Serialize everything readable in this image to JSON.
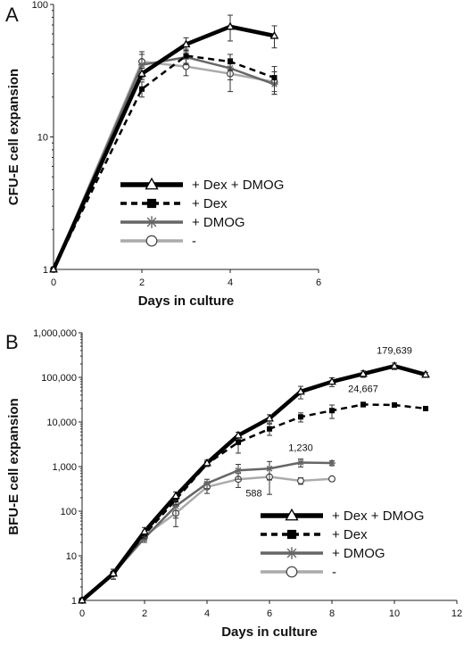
{
  "chart_data": [
    {
      "panel": "A",
      "type": "line",
      "xlabel": "Days in culture",
      "ylabel": "CFU-E cell expansion",
      "xlim": [
        0,
        6
      ],
      "ylim": [
        1,
        100
      ],
      "yscale": "log",
      "x_ticks": [
        "0",
        "2",
        "4",
        "6"
      ],
      "y_ticks": [
        "1",
        "10",
        "100"
      ],
      "legend_position": "center-right",
      "series": [
        {
          "name": "+ Dex + DMOG",
          "color": "#000000",
          "marker": "triangle",
          "line": "solid-thick",
          "x": [
            0,
            2,
            3,
            4,
            5
          ],
          "y": [
            1,
            30,
            50,
            68,
            58
          ],
          "err": [
            0,
            3,
            6,
            15,
            11
          ]
        },
        {
          "name": "+ Dex",
          "color": "#000000",
          "marker": "square",
          "line": "dashed",
          "x": [
            0,
            2,
            3,
            4,
            5
          ],
          "y": [
            1,
            23,
            41,
            37,
            28
          ],
          "err": [
            0,
            3,
            5,
            5,
            6
          ]
        },
        {
          "name": "+ DMOG",
          "color": "#666666",
          "marker": "asterisk",
          "line": "solid",
          "x": [
            0,
            2,
            3,
            4,
            5
          ],
          "y": [
            1,
            35,
            40,
            33,
            25
          ],
          "err": [
            0,
            7,
            5,
            6,
            4
          ]
        },
        {
          "name": "-",
          "color": "#aaaaaa",
          "marker": "circle",
          "line": "solid-light",
          "x": [
            0,
            2,
            3,
            4,
            5
          ],
          "y": [
            1,
            37,
            34,
            30,
            26
          ],
          "err": [
            0,
            7,
            5,
            8,
            5
          ]
        }
      ]
    },
    {
      "panel": "B",
      "type": "line",
      "xlabel": "Days in culture",
      "ylabel": "BFU-E cell expansion",
      "xlim": [
        0,
        12
      ],
      "ylim": [
        1,
        1000000
      ],
      "yscale": "log",
      "x_ticks": [
        "0",
        "2",
        "4",
        "6",
        "8",
        "10",
        "12"
      ],
      "y_ticks": [
        "1",
        "10",
        "100",
        "1,000",
        "10,000",
        "100,000",
        "1,000,000"
      ],
      "legend_position": "lower-right",
      "annotations": [
        {
          "text": "179,639",
          "x": 10,
          "y": 179639,
          "dy": -14
        },
        {
          "text": "24,667",
          "x": 9,
          "y": 24667,
          "dy": -14
        },
        {
          "text": "1,230",
          "x": 7,
          "y": 1230,
          "dy": -13
        },
        {
          "text": "588",
          "x": 5.5,
          "y": 588,
          "dy": 22
        }
      ],
      "series": [
        {
          "name": "+ Dex + DMOG",
          "color": "#000000",
          "marker": "triangle",
          "line": "solid-thick",
          "x": [
            0,
            1,
            2,
            3,
            4,
            5,
            6,
            7,
            8,
            9,
            10,
            11
          ],
          "y": [
            1,
            4,
            35,
            220,
            1200,
            5000,
            12000,
            48000,
            80000,
            120000,
            179639,
            115000
          ],
          "err": [
            0,
            1,
            8,
            50,
            200,
            900,
            2500,
            15000,
            18000,
            20000,
            30000,
            15000
          ]
        },
        {
          "name": "+ Dex",
          "color": "#000000",
          "marker": "square",
          "line": "dashed",
          "x": [
            0,
            1,
            2,
            3,
            4,
            5,
            6,
            7,
            8,
            9,
            10,
            11
          ],
          "y": [
            1,
            4,
            30,
            180,
            1150,
            3500,
            7000,
            13000,
            18000,
            24667,
            24000,
            20000
          ],
          "err": [
            0,
            1,
            6,
            40,
            150,
            1500,
            2000,
            3000,
            6000,
            3000,
            2500,
            2000
          ]
        },
        {
          "name": "+ DMOG",
          "color": "#666666",
          "marker": "asterisk",
          "line": "solid",
          "x": [
            0,
            1,
            2,
            3,
            4,
            5,
            6,
            7,
            8
          ],
          "y": [
            1,
            4,
            25,
            130,
            420,
            820,
            900,
            1230,
            1200
          ],
          "err": [
            0,
            1,
            5,
            60,
            100,
            300,
            400,
            250,
            150
          ]
        },
        {
          "name": "-",
          "color": "#aaaaaa",
          "marker": "circle",
          "line": "solid-light",
          "x": [
            0,
            1,
            2,
            3,
            4,
            5,
            6,
            7,
            8
          ],
          "y": [
            1,
            4,
            28,
            90,
            350,
            520,
            588,
            480,
            530
          ],
          "err": [
            0,
            1,
            6,
            45,
            100,
            180,
            350,
            80,
            60
          ]
        }
      ]
    }
  ]
}
